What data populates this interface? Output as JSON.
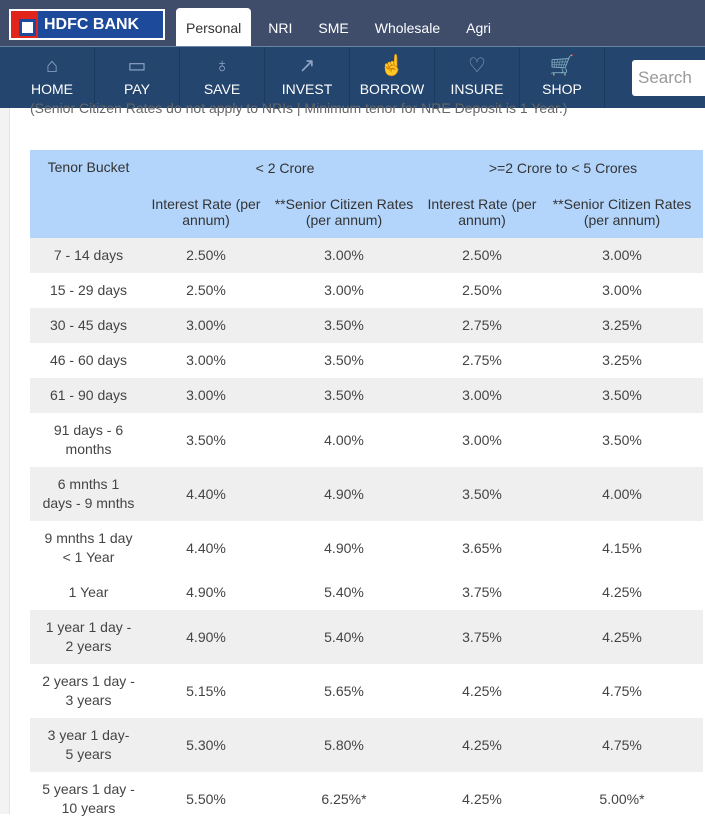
{
  "brand": {
    "name": "HDFC BANK"
  },
  "tabs": [
    "Personal",
    "NRI",
    "SME",
    "Wholesale",
    "Agri"
  ],
  "nav": [
    {
      "label": "HOME",
      "icon": "home-icon"
    },
    {
      "label": "PAY",
      "icon": "pay-icon"
    },
    {
      "label": "SAVE",
      "icon": "save-icon"
    },
    {
      "label": "INVEST",
      "icon": "invest-icon"
    },
    {
      "label": "BORROW",
      "icon": "borrow-icon"
    },
    {
      "label": "INSURE",
      "icon": "insure-icon"
    },
    {
      "label": "SHOP",
      "icon": "shop-icon"
    }
  ],
  "search": {
    "placeholder": "Search"
  },
  "note": "(Senior Citizen Rates do not apply to NRIs | Minimum tenor for NRE Deposit is 1 Year.)",
  "table": {
    "header": {
      "tenor": "Tenor Bucket",
      "group1": "< 2 Crore",
      "group2": ">=2 Crore to < 5 Crores",
      "rate": "Interest Rate (per annum)",
      "senior": "**Senior Citizen Rates (per annum)"
    },
    "rows": [
      [
        "7 - 14 days",
        "2.50%",
        "3.00%",
        "2.50%",
        "3.00%"
      ],
      [
        "15 - 29 days",
        "2.50%",
        "3.00%",
        "2.50%",
        "3.00%"
      ],
      [
        "30 - 45 days",
        "3.00%",
        "3.50%",
        "2.75%",
        "3.25%"
      ],
      [
        "46 - 60 days",
        "3.00%",
        "3.50%",
        "2.75%",
        "3.25%"
      ],
      [
        "61 - 90 days",
        "3.00%",
        "3.50%",
        "3.00%",
        "3.50%"
      ],
      [
        "91 days - 6 months",
        "3.50%",
        "4.00%",
        "3.00%",
        "3.50%"
      ],
      [
        "6 mnths 1 days - 9 mnths",
        "4.40%",
        "4.90%",
        "3.50%",
        "4.00%"
      ],
      [
        "9 mnths 1 day < 1 Year",
        "4.40%",
        "4.90%",
        "3.65%",
        "4.15%"
      ],
      [
        "1 Year",
        "4.90%",
        "5.40%",
        "3.75%",
        "4.25%"
      ],
      [
        "1 year 1 day - 2 years",
        "4.90%",
        "5.40%",
        "3.75%",
        "4.25%"
      ],
      [
        "2 years 1 day - 3 years",
        "5.15%",
        "5.65%",
        "4.25%",
        "4.75%"
      ],
      [
        "3 year 1 day- 5 years",
        "5.30%",
        "5.80%",
        "4.25%",
        "4.75%"
      ],
      [
        "5 years 1 day - 10 years",
        "5.50%",
        "6.25%*",
        "4.25%",
        "5.00%*"
      ]
    ]
  }
}
